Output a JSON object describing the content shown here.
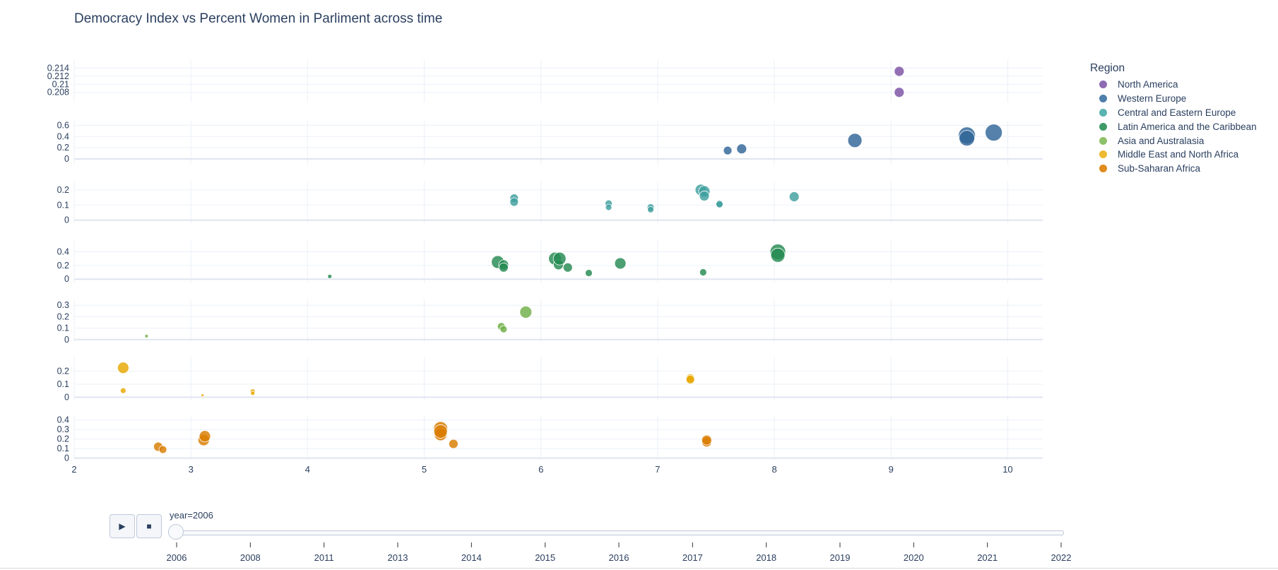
{
  "title": "Democracy Index vs Percent Women in Parliment across time",
  "legend": {
    "title": "Region",
    "items": [
      {
        "name": "North America",
        "color": "#8e6bb3"
      },
      {
        "name": "Western Europe",
        "color": "#4f7fab"
      },
      {
        "name": "Central and Eastern Europe",
        "color": "#5ab3b0"
      },
      {
        "name": "Latin America and the Caribbean",
        "color": "#3f9a68"
      },
      {
        "name": "Asia and Australasia",
        "color": "#8fc06a"
      },
      {
        "name": "Middle East and North Africa",
        "color": "#eeba30"
      },
      {
        "name": "Sub-Saharan Africa",
        "color": "#df8c1d"
      }
    ]
  },
  "slider": {
    "label": "year=2006",
    "ticks": [
      "2006",
      "2008",
      "2011",
      "2013",
      "2014",
      "2015",
      "2016",
      "2017",
      "2018",
      "2019",
      "2020",
      "2021",
      "2022"
    ],
    "current": "2006",
    "play_icon": "play-icon",
    "stop_icon": "stop-icon"
  },
  "chart_data": {
    "type": "scatter",
    "title": "Democracy Index vs Percent Women in Parliment across time",
    "x_range": [
      2,
      10.3
    ],
    "x_ticks": [
      "2",
      "3",
      "4",
      "5",
      "6",
      "7",
      "8",
      "9",
      "10"
    ],
    "facets": [
      {
        "region": "North America",
        "color": "#7b4fa3",
        "ylim": [
          0.2055,
          0.216
        ],
        "y_ticks": [
          "0.208",
          "0.21",
          "0.212",
          "0.214"
        ],
        "points": [
          {
            "x": 9.07,
            "y": 0.2132,
            "s": 7
          },
          {
            "x": 9.07,
            "y": 0.208,
            "s": 7
          }
        ]
      },
      {
        "region": "Western Europe",
        "color": "#2f6597",
        "ylim": [
          -0.1,
          0.68
        ],
        "y_ticks": [
          "0",
          "0.2",
          "0.4",
          "0.6"
        ],
        "points": [
          {
            "x": 7.6,
            "y": 0.15,
            "s": 6
          },
          {
            "x": 7.72,
            "y": 0.18,
            "s": 7
          },
          {
            "x": 8.69,
            "y": 0.33,
            "s": 10
          },
          {
            "x": 9.65,
            "y": 0.42,
            "s": 12
          },
          {
            "x": 9.65,
            "y": 0.37,
            "s": 11
          },
          {
            "x": 9.88,
            "y": 0.47,
            "s": 12
          }
        ]
      },
      {
        "region": "Central and Eastern Europe",
        "color": "#3fa09f",
        "ylim": [
          -0.02,
          0.26
        ],
        "y_ticks": [
          "0",
          "0.1",
          "0.2"
        ],
        "points": [
          {
            "x": 5.77,
            "y": 0.145,
            "s": 6
          },
          {
            "x": 5.77,
            "y": 0.12,
            "s": 6
          },
          {
            "x": 6.58,
            "y": 0.11,
            "s": 5
          },
          {
            "x": 6.58,
            "y": 0.085,
            "s": 4.5
          },
          {
            "x": 6.94,
            "y": 0.085,
            "s": 5
          },
          {
            "x": 6.94,
            "y": 0.07,
            "s": 4.5
          },
          {
            "x": 7.37,
            "y": 0.2,
            "s": 8
          },
          {
            "x": 7.4,
            "y": 0.19,
            "s": 8
          },
          {
            "x": 7.4,
            "y": 0.16,
            "s": 7
          },
          {
            "x": 7.53,
            "y": 0.11,
            "s": 5
          },
          {
            "x": 7.53,
            "y": 0.105,
            "s": 5
          },
          {
            "x": 8.17,
            "y": 0.155,
            "s": 7
          }
        ]
      },
      {
        "region": "Latin America and the Caribbean",
        "color": "#238a51",
        "ylim": [
          -0.06,
          0.56
        ],
        "y_ticks": [
          "0",
          "0.2",
          "0.4"
        ],
        "points": [
          {
            "x": 4.19,
            "y": 0.04,
            "s": 3
          },
          {
            "x": 5.63,
            "y": 0.25,
            "s": 9
          },
          {
            "x": 5.68,
            "y": 0.21,
            "s": 7
          },
          {
            "x": 5.68,
            "y": 0.17,
            "s": 6.5
          },
          {
            "x": 6.12,
            "y": 0.3,
            "s": 9
          },
          {
            "x": 6.15,
            "y": 0.21,
            "s": 7
          },
          {
            "x": 6.16,
            "y": 0.3,
            "s": 9
          },
          {
            "x": 6.23,
            "y": 0.17,
            "s": 6.5
          },
          {
            "x": 6.41,
            "y": 0.09,
            "s": 5
          },
          {
            "x": 6.68,
            "y": 0.23,
            "s": 8
          },
          {
            "x": 7.39,
            "y": 0.1,
            "s": 5
          },
          {
            "x": 8.03,
            "y": 0.4,
            "s": 11
          },
          {
            "x": 8.03,
            "y": 0.35,
            "s": 10
          }
        ]
      },
      {
        "region": "Asia and Australasia",
        "color": "#6fae45",
        "ylim": [
          -0.02,
          0.35
        ],
        "y_ticks": [
          "0",
          "0.1",
          "0.2",
          "0.3"
        ],
        "points": [
          {
            "x": 2.62,
            "y": 0.03,
            "s": 2.5
          },
          {
            "x": 5.66,
            "y": 0.115,
            "s": 5.5
          },
          {
            "x": 5.68,
            "y": 0.09,
            "s": 5
          },
          {
            "x": 5.87,
            "y": 0.24,
            "s": 8.5
          }
        ]
      },
      {
        "region": "Middle East and North Africa",
        "color": "#e6a700",
        "ylim": [
          -0.025,
          0.31
        ],
        "y_ticks": [
          "0",
          "0.1",
          "0.2"
        ],
        "points": [
          {
            "x": 2.42,
            "y": 0.225,
            "s": 8
          },
          {
            "x": 2.42,
            "y": 0.05,
            "s": 4
          },
          {
            "x": 3.1,
            "y": 0.015,
            "s": 2
          },
          {
            "x": 3.53,
            "y": 0.045,
            "s": 3.5
          },
          {
            "x": 3.53,
            "y": 0.03,
            "s": 3
          },
          {
            "x": 7.28,
            "y": 0.145,
            "s": 6
          },
          {
            "x": 7.28,
            "y": 0.135,
            "s": 6
          }
        ]
      },
      {
        "region": "Sub-Saharan Africa",
        "color": "#d97d00",
        "ylim": [
          -0.01,
          0.45
        ],
        "y_ticks": [
          "0",
          "0.1",
          "0.2",
          "0.3",
          "0.4"
        ],
        "points": [
          {
            "x": 2.72,
            "y": 0.12,
            "s": 6.5
          },
          {
            "x": 2.76,
            "y": 0.09,
            "s": 5.5
          },
          {
            "x": 3.11,
            "y": 0.19,
            "s": 8
          },
          {
            "x": 3.12,
            "y": 0.23,
            "s": 8
          },
          {
            "x": 5.14,
            "y": 0.31,
            "s": 10
          },
          {
            "x": 5.14,
            "y": 0.25,
            "s": 9
          },
          {
            "x": 5.14,
            "y": 0.28,
            "s": 9.5
          },
          {
            "x": 5.25,
            "y": 0.15,
            "s": 6.5
          },
          {
            "x": 7.42,
            "y": 0.17,
            "s": 7
          },
          {
            "x": 7.42,
            "y": 0.19,
            "s": 7
          }
        ]
      }
    ]
  }
}
